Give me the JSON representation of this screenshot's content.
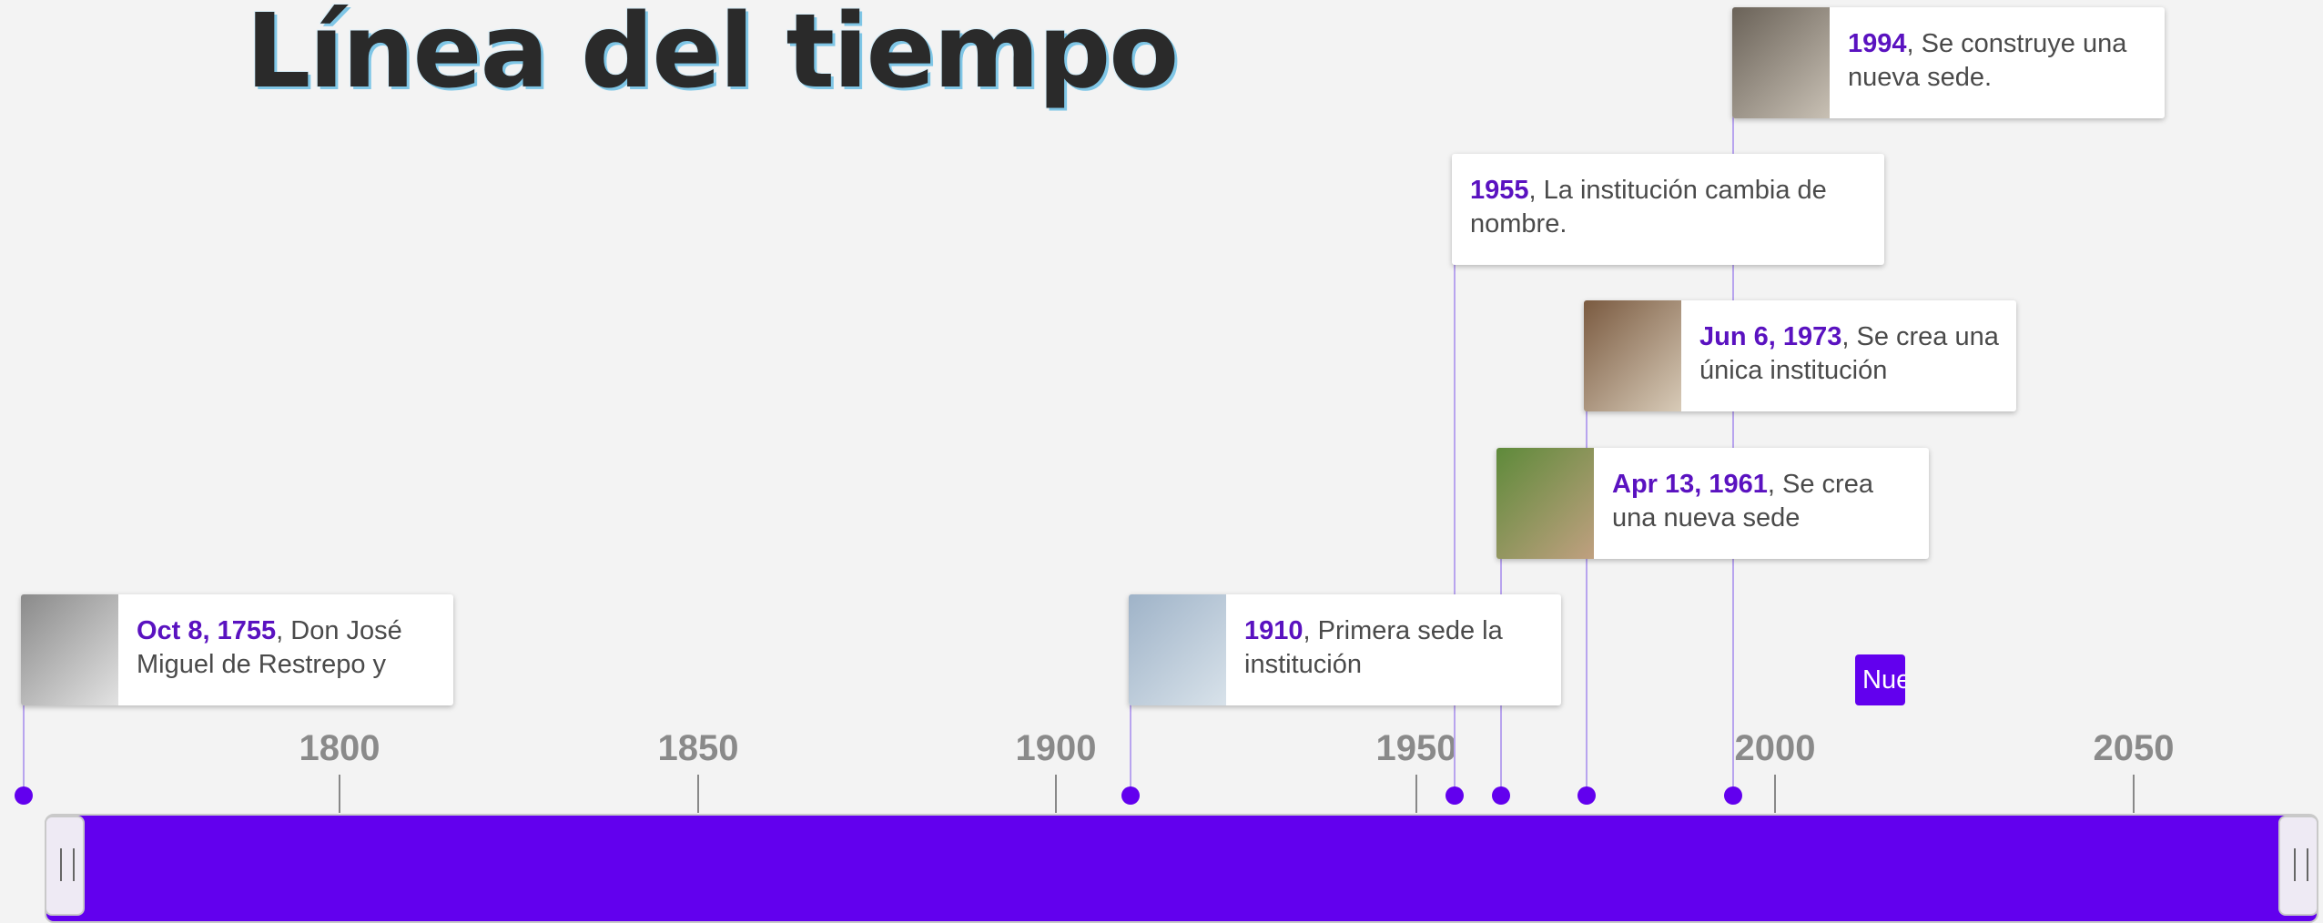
{
  "title": "Línea del tiempo",
  "axis": {
    "ticks": [
      1800,
      1850,
      1900,
      1950,
      2000,
      2050
    ]
  },
  "events": [
    {
      "date": "Oct 8, 1755",
      "text": ", Don José Miguel de Restrepo y"
    },
    {
      "date": "1910",
      "text": ", Primera sede la institución"
    },
    {
      "date": "Apr 13, 1961",
      "text": ", Se crea una nueva sede"
    },
    {
      "date": "Jun 6, 1973",
      "text": ", Se crea una única institución"
    },
    {
      "date": "1955",
      "text": ", La institución cambia de nombre."
    },
    {
      "date": "1994",
      "text": ", Se construye una nueva sede."
    }
  ],
  "button": "Nue"
}
